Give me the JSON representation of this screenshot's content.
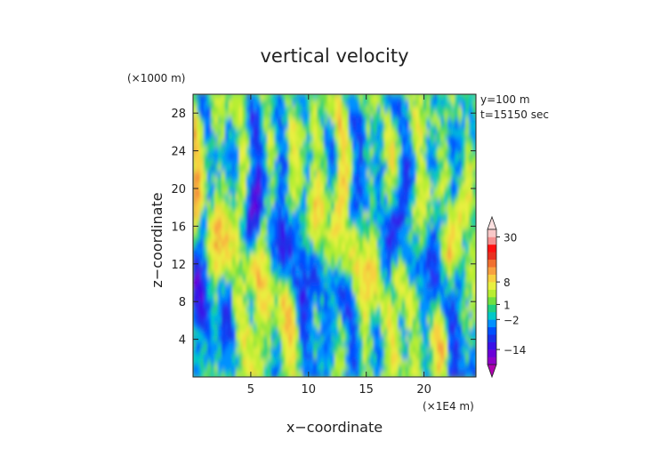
{
  "chart_data": {
    "type": "heatmap",
    "title": "vertical velocity",
    "xlabel": "x−coordinate",
    "ylabel": "z−coordinate",
    "x_unit": "(×1E4 m)",
    "y_unit": "(×1000 m)",
    "annotations": [
      "y=100 m",
      "t=15150 sec"
    ],
    "xlim": [
      0,
      24.5
    ],
    "ylim": [
      0,
      30
    ],
    "x_ticks": [
      "5",
      "10",
      "15",
      "20"
    ],
    "y_ticks": [
      "4",
      "8",
      "12",
      "16",
      "20",
      "24",
      "28"
    ],
    "colorbar": {
      "levels": [
        -20,
        -17,
        -14,
        -11,
        -8,
        -5,
        -2,
        -1,
        1,
        2,
        5,
        8,
        11,
        14,
        17,
        20,
        25,
        30,
        35
      ],
      "colors": [
        "#b000b0",
        "#8e00c8",
        "#6a00d8",
        "#3a10e8",
        "#1a30e8",
        "#0050ff",
        "#0090ff",
        "#00c8c8",
        "#20d080",
        "#70e040",
        "#b8ee30",
        "#e8f040",
        "#f8d040",
        "#f8a040",
        "#f07030",
        "#e83020",
        "#ff1010",
        "#f49090",
        "#f8c8c8",
        "#fbe0e0"
      ],
      "tick_labels": [
        "30",
        "8",
        "1",
        "−2",
        "−14"
      ]
    }
  }
}
